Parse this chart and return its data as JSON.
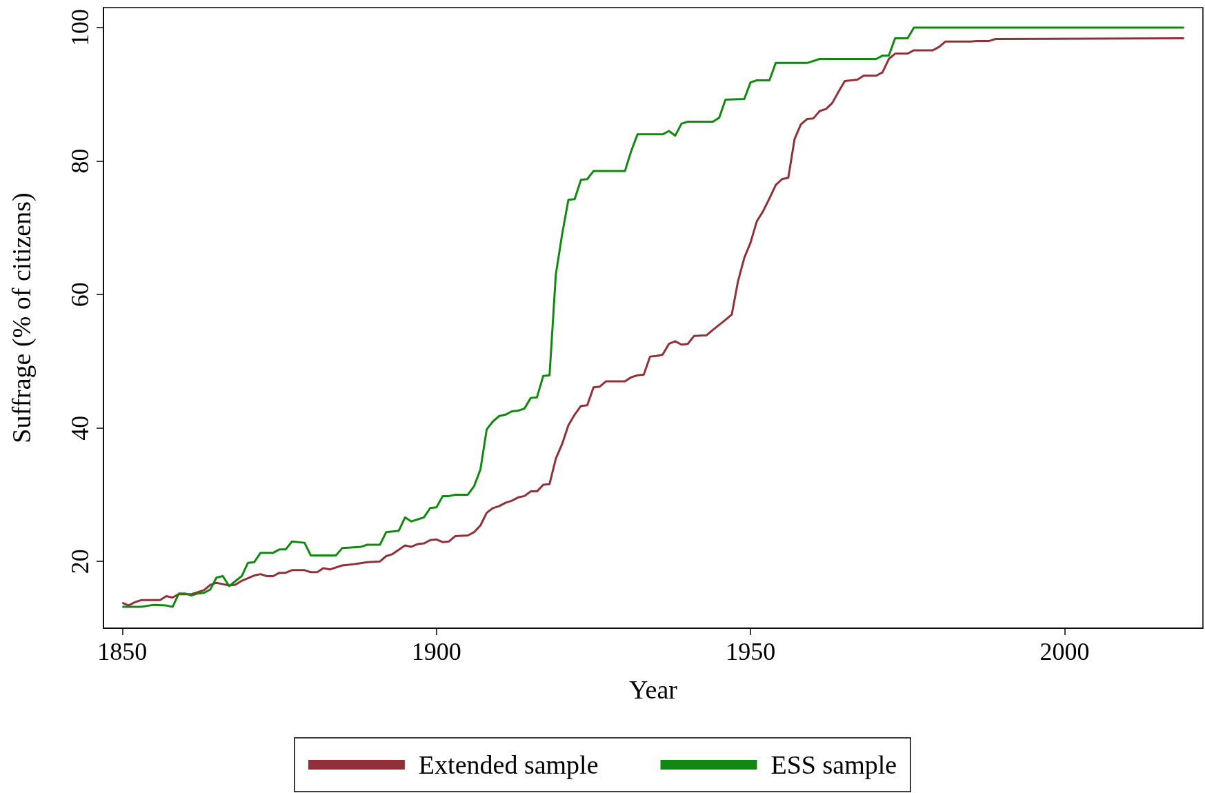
{
  "chart_data": {
    "type": "line",
    "xlabel": "Year",
    "ylabel": "Suffrage (% of citizens)",
    "xlim": [
      1847,
      2022
    ],
    "xticks": [
      1850,
      1900,
      1950,
      2000
    ],
    "ylim": [
      10,
      103
    ],
    "yticks": [
      20,
      40,
      60,
      80,
      100
    ],
    "grid": false,
    "legend": "bottom",
    "marker": "none",
    "line_style": "solid",
    "series": [
      {
        "name": "Extended sample",
        "color": "#903039",
        "x": [
          1850,
          1851,
          1852,
          1853,
          1856,
          1857,
          1858,
          1859,
          1861,
          1863,
          1864,
          1865,
          1866,
          1867,
          1868,
          1869,
          1871,
          1872,
          1873,
          1874,
          1875,
          1876,
          1877,
          1879,
          1880,
          1881,
          1882,
          1883,
          1885,
          1887,
          1889,
          1891,
          1892,
          1893,
          1895,
          1896,
          1897,
          1898,
          1899,
          1900,
          1901,
          1902,
          1903,
          1905,
          1906,
          1907,
          1908,
          1909,
          1910,
          1911,
          1912,
          1913,
          1914,
          1915,
          1916,
          1917,
          1918,
          1919,
          1920,
          1921,
          1922,
          1923,
          1924,
          1925,
          1926,
          1927,
          1930,
          1931,
          1932,
          1933,
          1934,
          1935,
          1936,
          1937,
          1938,
          1939,
          1940,
          1941,
          1943,
          1944,
          1946,
          1947,
          1948,
          1949,
          1950,
          1951,
          1952,
          1953,
          1954,
          1955,
          1956,
          1957,
          1958,
          1959,
          1960,
          1961,
          1962,
          1963,
          1964,
          1965,
          1967,
          1968,
          1970,
          1971,
          1972,
          1973,
          1975,
          1976,
          1979,
          1980,
          1981,
          1985,
          1986,
          1988,
          1989,
          2019
        ],
        "values": [
          13.8,
          13.4,
          13.9,
          14.2,
          14.2,
          14.8,
          14.6,
          15.1,
          15.1,
          15.7,
          16.5,
          16.8,
          16.6,
          16.4,
          16.5,
          17.1,
          17.9,
          18.1,
          17.8,
          17.8,
          18.3,
          18.3,
          18.7,
          18.7,
          18.4,
          18.4,
          19,
          18.8,
          19.4,
          19.6,
          19.9,
          20,
          20.8,
          21.1,
          22.4,
          22.2,
          22.6,
          22.7,
          23.2,
          23.3,
          22.9,
          23,
          23.8,
          23.9,
          24.4,
          25.4,
          27.3,
          28,
          28.3,
          28.8,
          29.1,
          29.6,
          29.8,
          30.5,
          30.5,
          31.5,
          31.6,
          35.4,
          37.6,
          40.4,
          42,
          43.3,
          43.4,
          46.1,
          46.2,
          47,
          47,
          47.6,
          47.9,
          48,
          50.7,
          50.8,
          51,
          52.6,
          53,
          52.5,
          52.6,
          53.8,
          53.9,
          54.7,
          56.2,
          57,
          62,
          65.5,
          67.8,
          71,
          72.5,
          74.4,
          76.4,
          77.3,
          77.5,
          83.3,
          85.5,
          86.3,
          86.4,
          87.5,
          87.8,
          88.7,
          90.4,
          92,
          92.2,
          92.8,
          92.8,
          93.3,
          95.3,
          96.1,
          96.1,
          96.6,
          96.6,
          97.1,
          97.9,
          97.9,
          98,
          98,
          98.3,
          98.4
        ]
      },
      {
        "name": "ESS sample",
        "color": "#128812",
        "x": [
          1850,
          1853,
          1855,
          1857,
          1858,
          1859,
          1860,
          1861,
          1862,
          1863,
          1864,
          1865,
          1866,
          1867,
          1869,
          1870,
          1871,
          1872,
          1874,
          1875,
          1876,
          1877,
          1879,
          1880,
          1884,
          1885,
          1888,
          1889,
          1891,
          1892,
          1894,
          1895,
          1896,
          1897,
          1898,
          1899,
          1900,
          1901,
          1902,
          1903,
          1905,
          1906,
          1907,
          1908,
          1909,
          1910,
          1911,
          1912,
          1913,
          1914,
          1915,
          1916,
          1917,
          1918,
          1919,
          1920,
          1921,
          1922,
          1923,
          1924,
          1925,
          1930,
          1931,
          1932,
          1936,
          1937,
          1938,
          1939,
          1940,
          1944,
          1945,
          1946,
          1949,
          1950,
          1951,
          1953,
          1954,
          1959,
          1961,
          1970,
          1971,
          1972,
          1973,
          1975,
          1976,
          2019
        ],
        "values": [
          13.2,
          13.2,
          13.5,
          13.4,
          13.2,
          15.2,
          15.2,
          14.9,
          15.2,
          15.3,
          15.8,
          17.6,
          17.8,
          16.3,
          17.8,
          19.8,
          19.9,
          21.3,
          21.3,
          21.8,
          21.8,
          23,
          22.8,
          20.9,
          20.9,
          22,
          22.2,
          22.5,
          22.5,
          24.4,
          24.6,
          26.6,
          26,
          26.3,
          26.6,
          28,
          28.1,
          29.8,
          29.8,
          30,
          30,
          31.3,
          33.8,
          39.8,
          41,
          41.8,
          42,
          42.5,
          42.6,
          42.9,
          44.5,
          44.6,
          47.8,
          47.9,
          63,
          69,
          74.2,
          74.3,
          77.2,
          77.3,
          78.5,
          78.5,
          81.5,
          84,
          84,
          84.5,
          83.8,
          85.6,
          85.9,
          85.9,
          86.5,
          89.2,
          89.3,
          91.8,
          92.1,
          92.1,
          94.7,
          94.7,
          95.3,
          95.3,
          95.8,
          95.8,
          98.4,
          98.4,
          100,
          100
        ]
      }
    ]
  }
}
